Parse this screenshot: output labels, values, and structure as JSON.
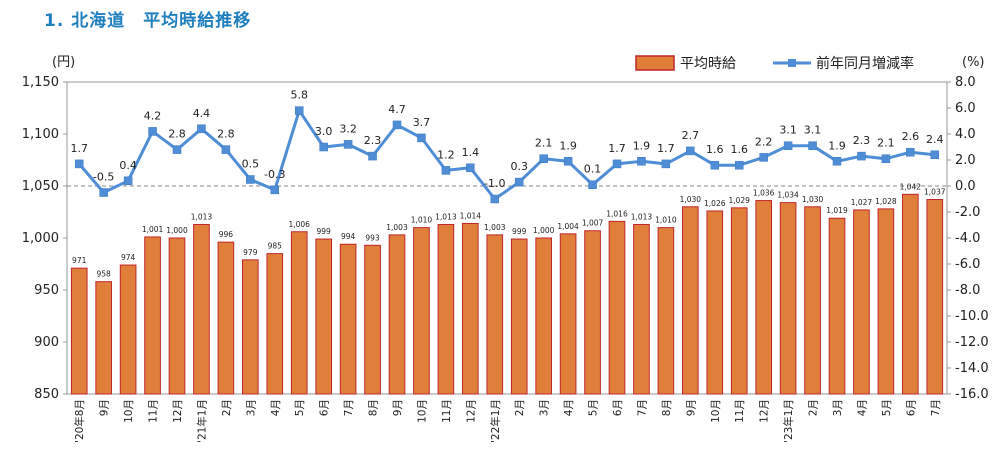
{
  "page_title": "1. 北海道　平均時給推移",
  "chart_data": {
    "type": "bar+line",
    "left_axis_unit": "(円)",
    "right_axis_unit": "(%)",
    "left_ylim": [
      850,
      1150
    ],
    "left_ticks": [
      "850",
      "900",
      "950",
      "1,000",
      "1,050",
      "1,100",
      "1,150"
    ],
    "right_ylim": [
      -16.0,
      8.0
    ],
    "right_ticks": [
      "-16.0",
      "-14.0",
      "-12.0",
      "-10.0",
      "-8.0",
      "-6.0",
      "-4.0",
      "-2.0",
      "0.0",
      "2.0",
      "4.0",
      "6.0",
      "8.0"
    ],
    "categories": [
      "'20年8月",
      "9月",
      "10月",
      "11月",
      "12月",
      "'21年1月",
      "2月",
      "3月",
      "4月",
      "5月",
      "6月",
      "7月",
      "8月",
      "9月",
      "10月",
      "11月",
      "12月",
      "'22年1月",
      "2月",
      "3月",
      "4月",
      "5月",
      "6月",
      "7月",
      "8月",
      "9月",
      "10月",
      "11月",
      "12月",
      "'23年1月",
      "2月",
      "3月",
      "4月",
      "5月",
      "6月",
      "7月"
    ],
    "series": [
      {
        "name": "平均時給",
        "kind": "bar",
        "color": "#e07f3a",
        "edge_color": "#c0252b",
        "values": [
          971,
          958,
          974,
          1001,
          1000,
          1013,
          996,
          979,
          985,
          1006,
          999,
          994,
          993,
          1003,
          1010,
          1013,
          1014,
          1003,
          999,
          1000,
          1004,
          1007,
          1016,
          1013,
          1010,
          1030,
          1026,
          1029,
          1036,
          1034,
          1030,
          1019,
          1027,
          1028,
          1042,
          1037
        ],
        "labels": [
          "971",
          "958",
          "974",
          "1,001",
          "1,000",
          "1,013",
          "996",
          "979",
          "985",
          "1,006",
          "999",
          "994",
          "993",
          "1,003",
          "1,010",
          "1,013",
          "1,014",
          "1,003",
          "999",
          "1,000",
          "1,004",
          "1,007",
          "1,016",
          "1,013",
          "1,010",
          "1,030",
          "1,026",
          "1,029",
          "1,036",
          "1,034",
          "1,030",
          "1,019",
          "1,027",
          "1,028",
          "1,042",
          "1,037"
        ]
      },
      {
        "name": "前年同月増減率",
        "kind": "line",
        "color": "#4f8ed6",
        "values": [
          1.7,
          -0.5,
          0.4,
          4.2,
          2.8,
          4.4,
          2.8,
          0.5,
          -0.3,
          5.8,
          3.0,
          3.2,
          2.3,
          4.7,
          3.7,
          1.2,
          1.4,
          -1.0,
          0.3,
          2.1,
          1.9,
          0.1,
          1.7,
          1.9,
          1.7,
          2.7,
          1.6,
          1.6,
          2.2,
          3.1,
          3.1,
          1.9,
          2.3,
          2.1,
          2.6,
          2.4
        ],
        "labels": [
          "1.7",
          "-0.5",
          "0.4",
          "4.2",
          "2.8",
          "4.4",
          "2.8",
          "0.5",
          "-0.3",
          "5.8",
          "3.0",
          "3.2",
          "2.3",
          "4.7",
          "3.7",
          "1.2",
          "1.4",
          "-1.0",
          "0.3",
          "2.1",
          "1.9",
          "0.1",
          "1.7",
          "1.9",
          "1.7",
          "2.7",
          "1.6",
          "1.6",
          "2.2",
          "3.1",
          "3.1",
          "1.9",
          "2.3",
          "2.1",
          "2.6",
          "2.4"
        ]
      }
    ],
    "zero_reference_line": "dashed at 0.0%",
    "legend_position": "top-right"
  }
}
